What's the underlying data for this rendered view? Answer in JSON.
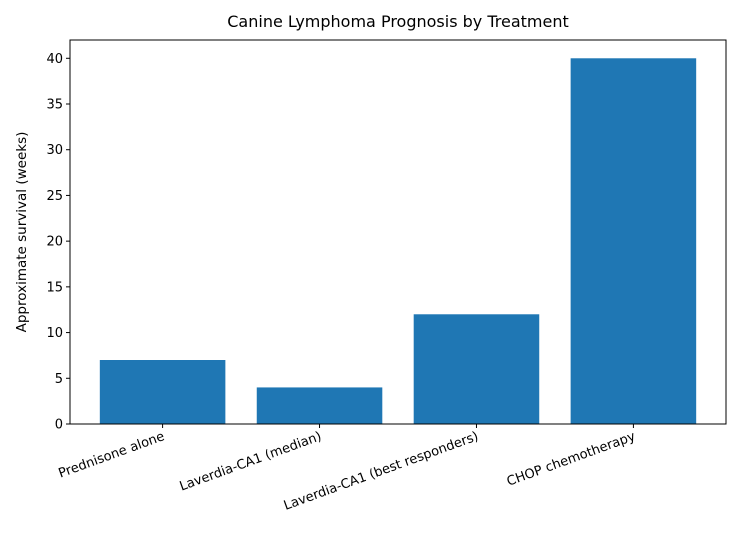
{
  "chart_data": {
    "type": "bar",
    "title": "Canine Lymphoma Prognosis by Treatment",
    "xlabel": "",
    "ylabel": "Approximate survival (weeks)",
    "categories": [
      "Prednisone alone",
      "Laverdia-CA1 (median)",
      "Laverdia-CA1 (best responders)",
      "CHOP chemotherapy"
    ],
    "values": [
      7,
      4,
      12,
      40
    ],
    "ylim": [
      0,
      42
    ],
    "yticks": [
      0,
      5,
      10,
      15,
      20,
      25,
      30,
      35,
      40
    ],
    "grid": false,
    "bar_color": "#1f77b4",
    "xtick_rotation_deg": 20
  }
}
